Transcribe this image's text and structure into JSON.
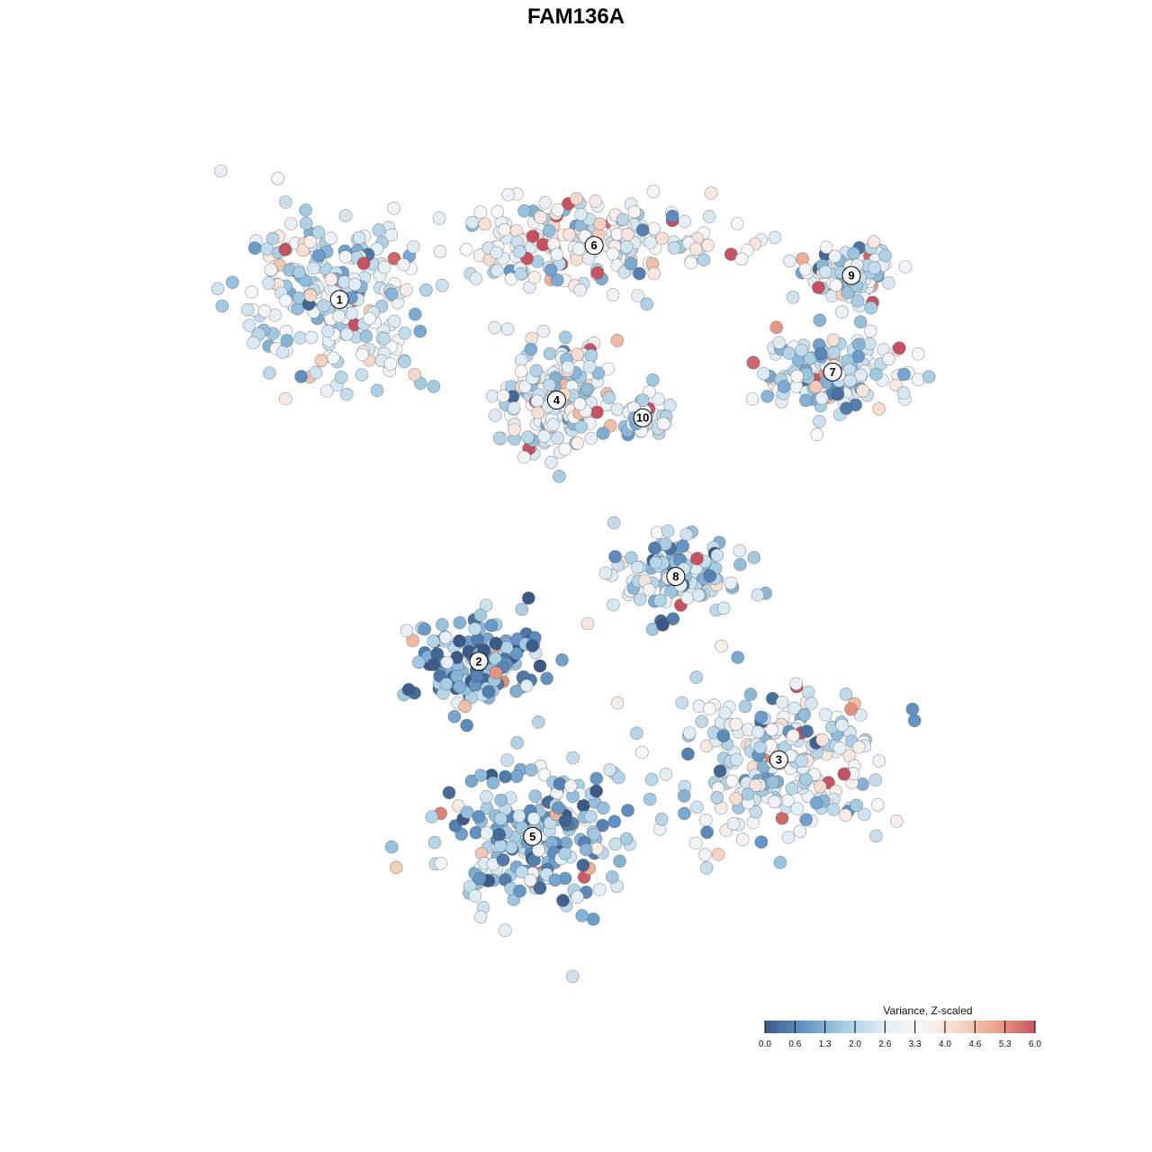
{
  "chart_data": {
    "type": "scatter",
    "title": "FAM136A",
    "xlabel": "",
    "ylabel": "",
    "grid": false,
    "legend_position": "bottom-right",
    "color_scale": {
      "title": "Variance, Z-scaled",
      "min": 0.0,
      "max": 6.0,
      "ticks": [
        "0.0",
        "0.6",
        "1.3",
        "2.0",
        "2.6",
        "3.3",
        "4.0",
        "4.6",
        "5.3",
        "6.0"
      ],
      "colors": [
        "#3b5a87",
        "#5f93c6",
        "#a2cbe2",
        "#ddebf4",
        "#f7f7f7",
        "#f7d9c9",
        "#eba487",
        "#c8505f"
      ]
    },
    "clusters": [
      {
        "label": "1",
        "cx": -36.5,
        "cy": 29.9,
        "value": 2.4
      },
      {
        "label": "2",
        "cx": -15.0,
        "cy": -23.0,
        "value": 1.1
      },
      {
        "label": "3",
        "cx": 31.3,
        "cy": -37.4,
        "value": 2.5
      },
      {
        "label": "4",
        "cx": -3.0,
        "cy": 15.2,
        "value": 2.6
      },
      {
        "label": "5",
        "cx": -6.7,
        "cy": -48.6,
        "value": 1.6
      },
      {
        "label": "6",
        "cx": 2.8,
        "cy": 37.8,
        "value": 2.9
      },
      {
        "label": "7",
        "cx": 39.6,
        "cy": 19.3,
        "value": 2.4
      },
      {
        "label": "8",
        "cx": 15.4,
        "cy": -10.6,
        "value": 2.0
      },
      {
        "label": "9",
        "cx": 42.5,
        "cy": 33.4,
        "value": 2.7
      },
      {
        "label": "10",
        "cx": 10.3,
        "cy": 12.6,
        "value": 2.3
      }
    ]
  }
}
